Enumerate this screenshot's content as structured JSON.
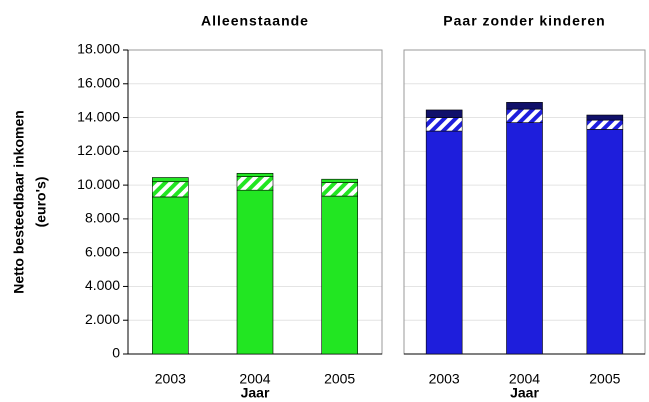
{
  "chart_data": [
    {
      "type": "bar",
      "stacked": true,
      "title": "Alleenstaande",
      "xlabel": "Jaar",
      "ylabel": [
        "Netto besteedbaar inkomen",
        "(euro's)"
      ],
      "categories": [
        "2003",
        "2004",
        "2005"
      ],
      "series": [
        {
          "color": "#22e622",
          "values": [
            9300,
            9700,
            9350
          ]
        },
        {
          "color": "#22e622",
          "hatch": true,
          "values": [
            900,
            800,
            800
          ]
        },
        {
          "color": "#22e622",
          "values": [
            250,
            200,
            200
          ]
        }
      ],
      "ylim": [
        0,
        18000
      ],
      "yticks": [
        0,
        {
          "value": 2000,
          "label": "2.000"
        },
        {
          "value": 4000,
          "label": "4.000"
        },
        {
          "value": 6000,
          "label": "6.000"
        },
        {
          "value": 8000,
          "label": "8.000"
        },
        {
          "value": 10000,
          "label": "10.000"
        },
        {
          "value": 12000,
          "label": "12.000"
        },
        {
          "value": 14000,
          "label": "14.000"
        },
        {
          "value": 16000,
          "label": "16.000"
        },
        {
          "value": 18000,
          "label": "18.000"
        }
      ],
      "grid": true
    },
    {
      "type": "bar",
      "stacked": true,
      "title": "Paar zonder kinderen",
      "xlabel": "Jaar",
      "categories": [
        "2003",
        "2004",
        "2005"
      ],
      "series": [
        {
          "color": "#1e1edc",
          "values": [
            13200,
            13700,
            13300
          ]
        },
        {
          "color": "#1e1edc",
          "hatch": true,
          "values": [
            800,
            800,
            550
          ]
        },
        {
          "color": "#10106a",
          "values": [
            450,
            400,
            300
          ]
        }
      ],
      "ylim": [
        0,
        18000
      ],
      "grid": true
    }
  ]
}
